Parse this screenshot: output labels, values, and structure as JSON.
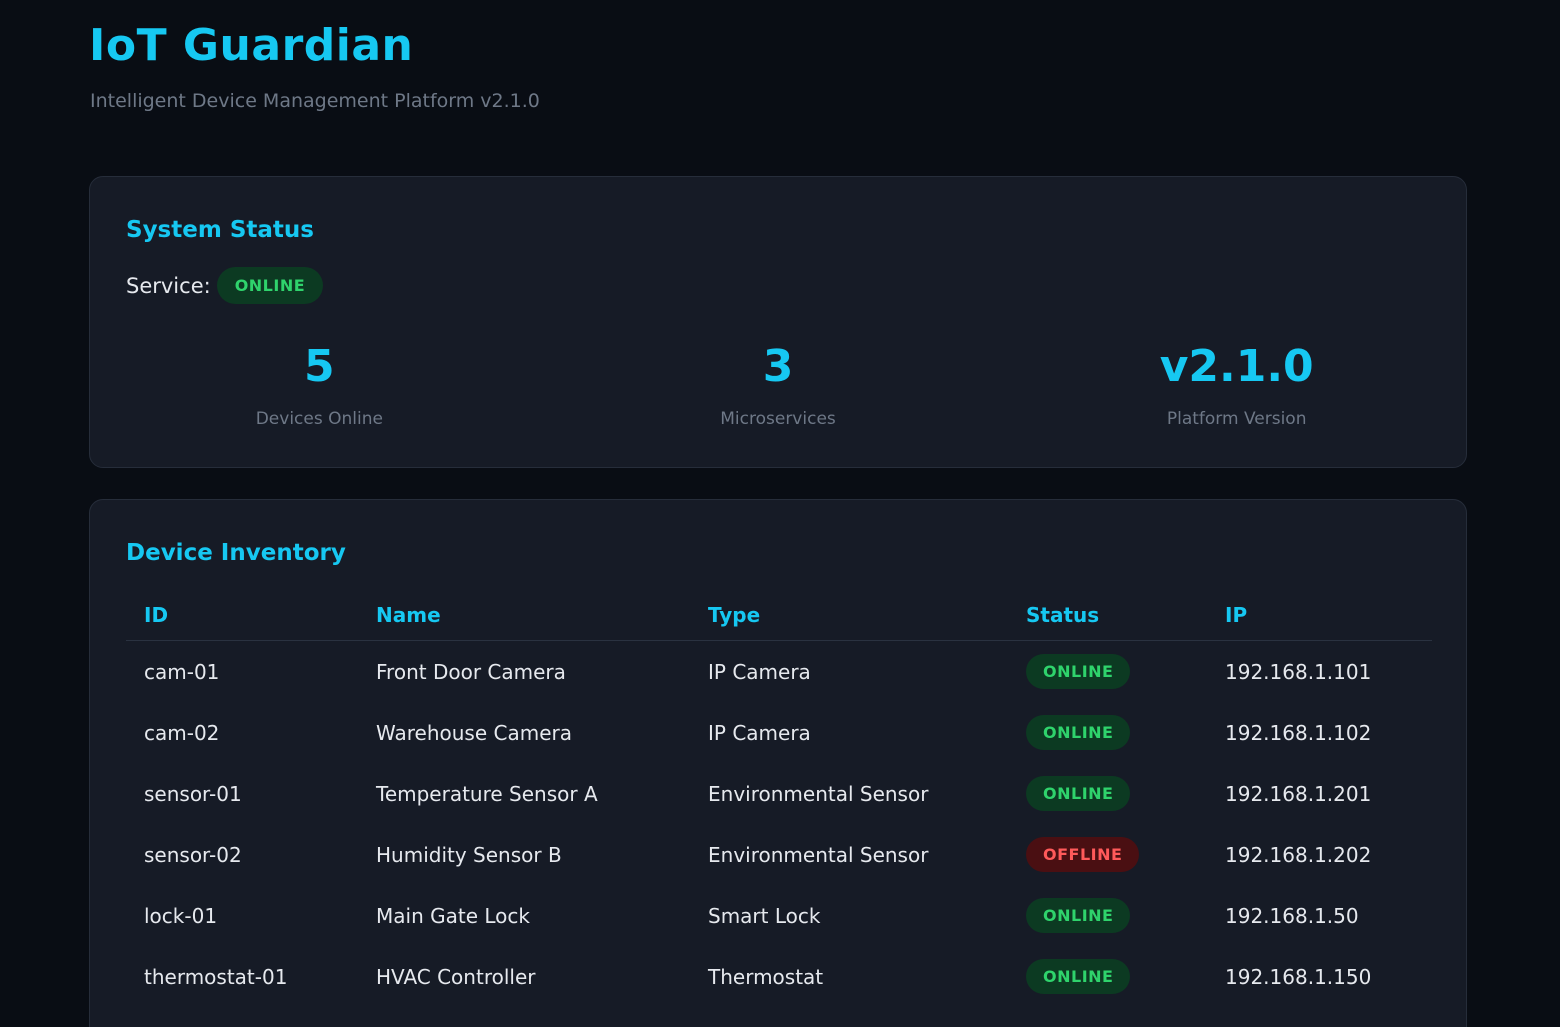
{
  "header": {
    "title": "IoT Guardian",
    "subtitle": "Intelligent Device Management Platform v2.1.0"
  },
  "system_status": {
    "heading": "System Status",
    "service_label": "Service:",
    "service_status": "ONLINE",
    "stats": [
      {
        "value": "5",
        "label": "Devices Online"
      },
      {
        "value": "3",
        "label": "Microservices"
      },
      {
        "value": "v2.1.0",
        "label": "Platform Version"
      }
    ]
  },
  "inventory": {
    "heading": "Device Inventory",
    "columns": [
      "ID",
      "Name",
      "Type",
      "Status",
      "IP"
    ],
    "rows": [
      {
        "id": "cam-01",
        "name": "Front Door Camera",
        "type": "IP Camera",
        "status": "ONLINE",
        "ip": "192.168.1.101"
      },
      {
        "id": "cam-02",
        "name": "Warehouse Camera",
        "type": "IP Camera",
        "status": "ONLINE",
        "ip": "192.168.1.102"
      },
      {
        "id": "sensor-01",
        "name": "Temperature Sensor A",
        "type": "Environmental Sensor",
        "status": "ONLINE",
        "ip": "192.168.1.201"
      },
      {
        "id": "sensor-02",
        "name": "Humidity Sensor B",
        "type": "Environmental Sensor",
        "status": "OFFLINE",
        "ip": "192.168.1.202"
      },
      {
        "id": "lock-01",
        "name": "Main Gate Lock",
        "type": "Smart Lock",
        "status": "ONLINE",
        "ip": "192.168.1.50"
      },
      {
        "id": "thermostat-01",
        "name": "HVAC Controller",
        "type": "Thermostat",
        "status": "ONLINE",
        "ip": "192.168.1.150"
      }
    ]
  },
  "colors": {
    "accent": "#16c8f2",
    "background": "#090d14",
    "card": "#161b26",
    "online_text": "#2fd36c",
    "online_bg": "#0c3a22",
    "offline_text": "#ff5a5a",
    "offline_bg": "#4a0f12"
  }
}
